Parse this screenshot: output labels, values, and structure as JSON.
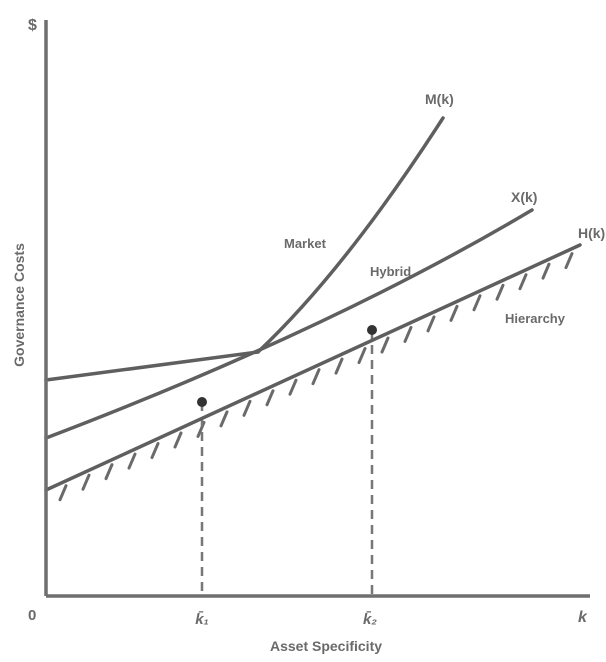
{
  "axes": {
    "y_symbol": "$",
    "x_symbol": "k",
    "origin": "0",
    "y_title": "Governance Costs",
    "x_title": "Asset Specificity"
  },
  "curves": {
    "market": {
      "end_label": "M(k)",
      "region_label": "Market"
    },
    "hybrid": {
      "end_label": "X(k)",
      "region_label": "Hybrid"
    },
    "hierarchy": {
      "end_label": "H(k)",
      "region_label": "Hierarchy"
    }
  },
  "thresholds": {
    "k1": "k̄₁",
    "k2": "k̄₂"
  },
  "colors": {
    "ink": "#5f5f5f",
    "label": "#6a6a6a",
    "background": "#ffffff"
  }
}
